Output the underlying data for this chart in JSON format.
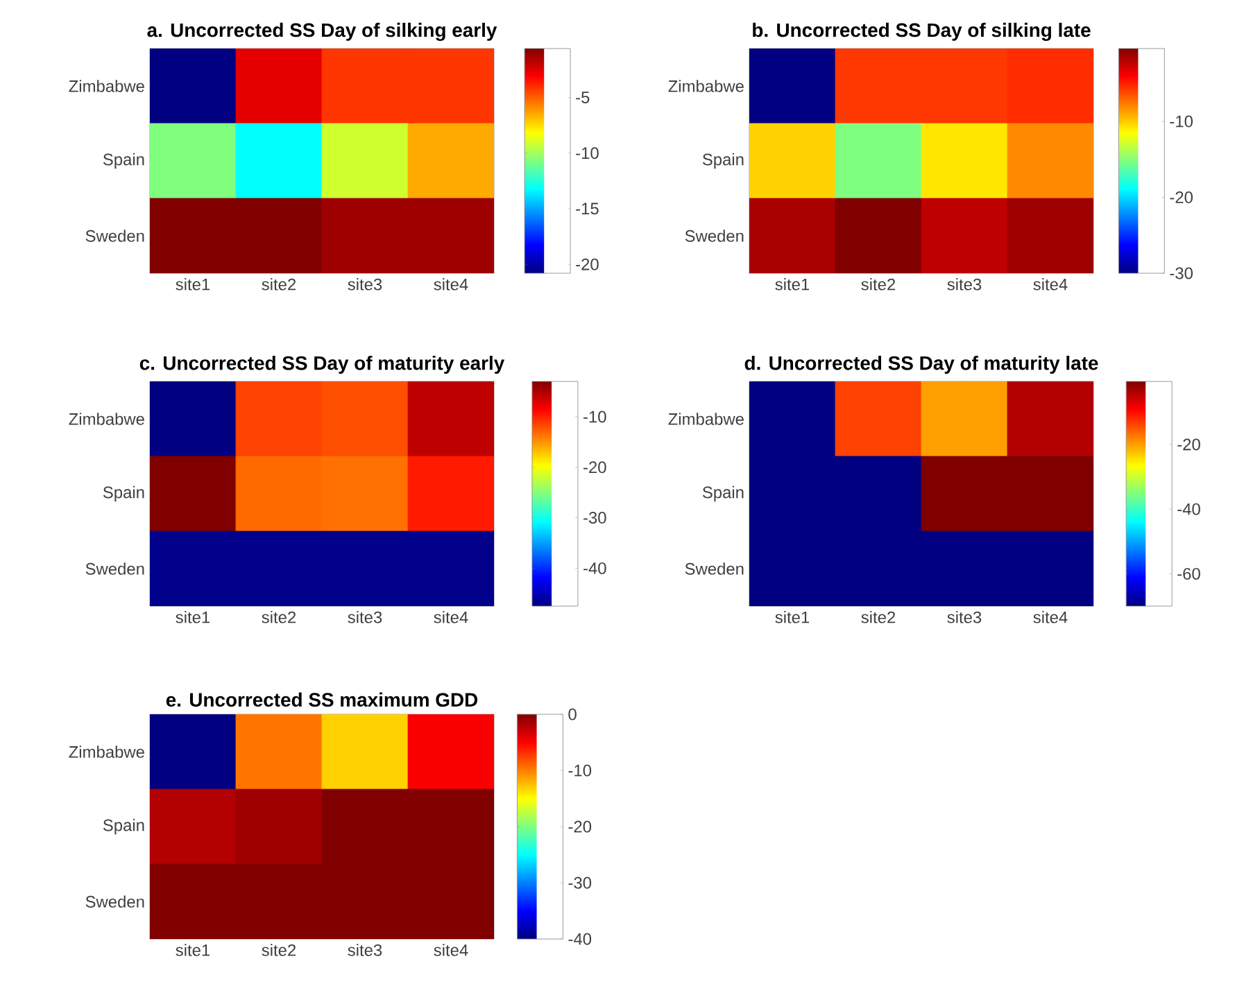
{
  "chart_data": [
    {
      "type": "heatmap",
      "title": "a. Uncorrected SS Day of silking early",
      "categories": [
        "site1",
        "site2",
        "site3",
        "site4"
      ],
      "y_categories": [
        "Zimbabwe",
        "Spain",
        "Sweden"
      ],
      "cells": [
        [
          -20.8,
          -2.6,
          -4.2,
          -4.2
        ],
        [
          -10.7,
          -13.2,
          -9.1,
          -6.5
        ],
        [
          -0.6,
          -0.6,
          -1.2,
          -1.2
        ]
      ],
      "clim": [
        -20.8,
        -0.6
      ],
      "cticks": [
        -20,
        -15,
        -10,
        -5
      ]
    },
    {
      "type": "heatmap",
      "title": "b. Uncorrected SS Day of silking late",
      "categories": [
        "site1",
        "site2",
        "site3",
        "site4"
      ],
      "y_categories": [
        "Zimbabwe",
        "Spain",
        "Sweden"
      ],
      "cells": [
        [
          -30,
          -5.7,
          -5.7,
          -5.4
        ],
        [
          -10.2,
          -15.2,
          -10.8,
          -8.1
        ],
        [
          -1.6,
          -0.4,
          -2.2,
          -1.3
        ]
      ],
      "clim": [
        -30,
        -0.4
      ],
      "cticks": [
        -30,
        -20,
        -10
      ]
    },
    {
      "type": "heatmap",
      "title": "c. Uncorrected SS Day of maturity early",
      "categories": [
        "site1",
        "site2",
        "site3",
        "site4"
      ],
      "y_categories": [
        "Zimbabwe",
        "Spain",
        "Sweden"
      ],
      "cells": [
        [
          -47.5,
          -11.5,
          -12,
          -5.7
        ],
        [
          -3,
          -13.2,
          -13.5,
          -9.7
        ],
        [
          -47,
          -47,
          -47,
          -47
        ]
      ],
      "clim": [
        -47.5,
        -3
      ],
      "cticks": [
        -40,
        -30,
        -20,
        -10
      ]
    },
    {
      "type": "heatmap",
      "title": "d. Uncorrected SS Day of maturity late",
      "categories": [
        "site1",
        "site2",
        "site3",
        "site4"
      ],
      "y_categories": [
        "Zimbabwe",
        "Spain",
        "Sweden"
      ],
      "cells": [
        [
          -70,
          -13.7,
          -20,
          -4
        ],
        [
          -70,
          -70,
          -0.5,
          -0.5
        ],
        [
          -70,
          -70,
          -70,
          -70
        ]
      ],
      "clim": [
        -70,
        -0.5
      ],
      "cticks": [
        -60,
        -40,
        -20
      ]
    },
    {
      "type": "heatmap",
      "title": "e. Uncorrected SS maximum GDD",
      "categories": [
        "site1",
        "site2",
        "site3",
        "site4"
      ],
      "y_categories": [
        "Zimbabwe",
        "Spain",
        "Sweden"
      ],
      "cells": [
        [
          -40,
          -9.6,
          -13.2,
          -4.8
        ],
        [
          -2,
          -1.2,
          0,
          0
        ],
        [
          0,
          0,
          0,
          0
        ]
      ],
      "clim": [
        -40,
        0
      ],
      "cticks": [
        -40,
        -30,
        -20,
        -10,
        0
      ]
    }
  ]
}
